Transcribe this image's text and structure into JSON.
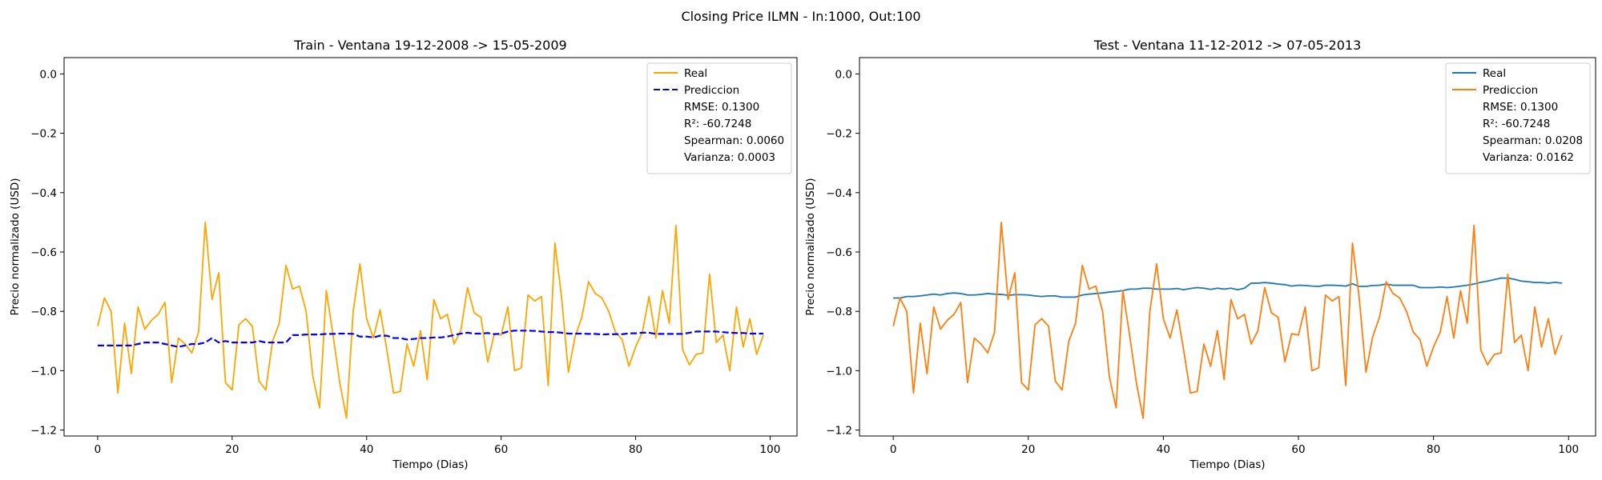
{
  "figure": {
    "suptitle": "Closing Price ILMN - In:1000, Out:100"
  },
  "chart_data": [
    {
      "type": "line",
      "title": "Train - Ventana 19-12-2008 -> 15-05-2009",
      "xlabel": "Tiempo (Dias)",
      "ylabel": "Precio normalizado (USD)",
      "xlim": [
        -5,
        104
      ],
      "ylim": [
        -1.22,
        0.055
      ],
      "xticks": [
        0,
        20,
        40,
        60,
        80,
        100
      ],
      "yticks": [
        0.0,
        -0.2,
        -0.4,
        -0.6,
        -0.8,
        -1.0,
        -1.2
      ],
      "xtick_labels": [
        "0",
        "20",
        "40",
        "60",
        "80",
        "100"
      ],
      "ytick_labels": [
        "0.0",
        "−0.2",
        "−0.4",
        "−0.6",
        "−0.8",
        "−1.0",
        "−1.2"
      ],
      "grid": false,
      "legend_position": "top-right",
      "series": [
        {
          "name": "Real",
          "color": "#ffa500",
          "style": "solid",
          "x_start": 0,
          "values": [
            -0.85,
            -0.755,
            -0.8,
            -1.075,
            -0.84,
            -1.01,
            -0.785,
            -0.86,
            -0.83,
            -0.81,
            -0.77,
            -1.04,
            -0.89,
            -0.91,
            -0.94,
            -0.87,
            -0.5,
            -0.76,
            -0.67,
            -1.04,
            -1.065,
            -0.845,
            -0.825,
            -0.85,
            -1.035,
            -1.065,
            -0.9,
            -0.84,
            -0.645,
            -0.725,
            -0.715,
            -0.8,
            -1.02,
            -1.125,
            -0.73,
            -0.88,
            -1.04,
            -1.16,
            -0.8,
            -0.64,
            -0.825,
            -0.89,
            -0.795,
            -0.93,
            -1.075,
            -1.07,
            -0.91,
            -0.985,
            -0.865,
            -1.03,
            -0.76,
            -0.825,
            -0.81,
            -0.91,
            -0.865,
            -0.72,
            -0.805,
            -0.82,
            -0.97,
            -0.875,
            -0.88,
            -0.785,
            -1.0,
            -0.99,
            -0.745,
            -0.765,
            -0.75,
            -1.05,
            -0.57,
            -0.755,
            -1.005,
            -0.885,
            -0.82,
            -0.7,
            -0.74,
            -0.755,
            -0.8,
            -0.87,
            -0.895,
            -0.985,
            -0.92,
            -0.87,
            -0.75,
            -0.89,
            -0.73,
            -0.84,
            -0.51,
            -0.93,
            -0.98,
            -0.945,
            -0.94,
            -0.675,
            -0.905,
            -0.88,
            -1.0,
            -0.785,
            -0.92,
            -0.825,
            -0.945,
            -0.88
          ]
        },
        {
          "name": "Prediccion",
          "color": "#0000ff",
          "style": "dashed",
          "x_start": 0,
          "values": [
            -0.915,
            -0.915,
            -0.915,
            -0.915,
            -0.915,
            -0.915,
            -0.91,
            -0.905,
            -0.905,
            -0.905,
            -0.91,
            -0.915,
            -0.92,
            -0.915,
            -0.91,
            -0.91,
            -0.905,
            -0.89,
            -0.905,
            -0.9,
            -0.905,
            -0.905,
            -0.905,
            -0.905,
            -0.9,
            -0.905,
            -0.905,
            -0.905,
            -0.905,
            -0.88,
            -0.88,
            -0.878,
            -0.878,
            -0.878,
            -0.876,
            -0.876,
            -0.875,
            -0.875,
            -0.876,
            -0.885,
            -0.885,
            -0.888,
            -0.882,
            -0.882,
            -0.89,
            -0.89,
            -0.895,
            -0.893,
            -0.89,
            -0.89,
            -0.888,
            -0.888,
            -0.885,
            -0.88,
            -0.875,
            -0.872,
            -0.875,
            -0.875,
            -0.873,
            -0.877,
            -0.875,
            -0.868,
            -0.865,
            -0.865,
            -0.865,
            -0.866,
            -0.868,
            -0.87,
            -0.87,
            -0.872,
            -0.875,
            -0.875,
            -0.875,
            -0.876,
            -0.876,
            -0.878,
            -0.877,
            -0.877,
            -0.877,
            -0.874,
            -0.874,
            -0.872,
            -0.872,
            -0.876,
            -0.876,
            -0.876,
            -0.876,
            -0.876,
            -0.872,
            -0.868,
            -0.868,
            -0.868,
            -0.868,
            -0.87,
            -0.872,
            -0.873,
            -0.873,
            -0.875,
            -0.875,
            -0.875
          ]
        }
      ],
      "legend_extra": [
        "RMSE: 0.1300",
        "R²: -60.7248",
        "Spearman: 0.0060",
        "Varianza: 0.0003"
      ]
    },
    {
      "type": "line",
      "title": "Test - Ventana 11-12-2012 -> 07-05-2013",
      "xlabel": "Tiempo (Dias)",
      "ylabel": "Precio normalizado (USD)",
      "xlim": [
        -5,
        104
      ],
      "ylim": [
        -1.22,
        0.055
      ],
      "xticks": [
        0,
        20,
        40,
        60,
        80,
        100
      ],
      "yticks": [
        0.0,
        -0.2,
        -0.4,
        -0.6,
        -0.8,
        -1.0,
        -1.2
      ],
      "xtick_labels": [
        "0",
        "20",
        "40",
        "60",
        "80",
        "100"
      ],
      "ytick_labels": [
        "0.0",
        "−0.2",
        "−0.4",
        "−0.6",
        "−0.8",
        "−1.0",
        "−1.2"
      ],
      "grid": false,
      "legend_position": "top-right",
      "series": [
        {
          "name": "Real",
          "color": "#1f77b4",
          "style": "solid",
          "x_start": 0,
          "values": [
            -0.755,
            -0.755,
            -0.75,
            -0.75,
            -0.748,
            -0.745,
            -0.742,
            -0.745,
            -0.74,
            -0.738,
            -0.74,
            -0.745,
            -0.745,
            -0.743,
            -0.74,
            -0.742,
            -0.743,
            -0.746,
            -0.744,
            -0.744,
            -0.745,
            -0.748,
            -0.75,
            -0.748,
            -0.748,
            -0.752,
            -0.752,
            -0.752,
            -0.745,
            -0.742,
            -0.74,
            -0.738,
            -0.735,
            -0.733,
            -0.73,
            -0.725,
            -0.725,
            -0.722,
            -0.722,
            -0.725,
            -0.725,
            -0.725,
            -0.723,
            -0.727,
            -0.723,
            -0.72,
            -0.722,
            -0.726,
            -0.722,
            -0.725,
            -0.722,
            -0.727,
            -0.722,
            -0.705,
            -0.705,
            -0.703,
            -0.705,
            -0.708,
            -0.71,
            -0.715,
            -0.712,
            -0.713,
            -0.715,
            -0.716,
            -0.712,
            -0.712,
            -0.713,
            -0.715,
            -0.707,
            -0.716,
            -0.716,
            -0.713,
            -0.712,
            -0.708,
            -0.712,
            -0.712,
            -0.712,
            -0.712,
            -0.72,
            -0.72,
            -0.72,
            -0.718,
            -0.72,
            -0.718,
            -0.715,
            -0.712,
            -0.708,
            -0.702,
            -0.698,
            -0.693,
            -0.688,
            -0.688,
            -0.692,
            -0.698,
            -0.7,
            -0.703,
            -0.703,
            -0.705,
            -0.702,
            -0.705
          ]
        },
        {
          "name": "Prediccion",
          "color": "#ff7f0e",
          "style": "solid",
          "x_start": 0,
          "values": [
            -0.85,
            -0.755,
            -0.8,
            -1.075,
            -0.84,
            -1.01,
            -0.785,
            -0.86,
            -0.83,
            -0.81,
            -0.77,
            -1.04,
            -0.89,
            -0.91,
            -0.94,
            -0.87,
            -0.5,
            -0.76,
            -0.67,
            -1.04,
            -1.065,
            -0.845,
            -0.825,
            -0.85,
            -1.035,
            -1.065,
            -0.9,
            -0.84,
            -0.645,
            -0.725,
            -0.715,
            -0.8,
            -1.02,
            -1.125,
            -0.73,
            -0.88,
            -1.04,
            -1.16,
            -0.8,
            -0.64,
            -0.825,
            -0.89,
            -0.795,
            -0.93,
            -1.075,
            -1.07,
            -0.91,
            -0.985,
            -0.865,
            -1.03,
            -0.76,
            -0.825,
            -0.81,
            -0.91,
            -0.865,
            -0.72,
            -0.805,
            -0.82,
            -0.97,
            -0.875,
            -0.88,
            -0.785,
            -1.0,
            -0.99,
            -0.745,
            -0.765,
            -0.75,
            -1.05,
            -0.57,
            -0.755,
            -1.005,
            -0.885,
            -0.82,
            -0.7,
            -0.74,
            -0.755,
            -0.8,
            -0.87,
            -0.895,
            -0.985,
            -0.92,
            -0.87,
            -0.75,
            -0.89,
            -0.73,
            -0.84,
            -0.51,
            -0.93,
            -0.98,
            -0.945,
            -0.94,
            -0.675,
            -0.905,
            -0.88,
            -1.0,
            -0.785,
            -0.92,
            -0.825,
            -0.945,
            -0.88
          ]
        }
      ],
      "legend_extra": [
        "RMSE: 0.1300",
        "R²: -60.7248",
        "Spearman: 0.0208",
        "Varianza: 0.0162"
      ]
    }
  ]
}
